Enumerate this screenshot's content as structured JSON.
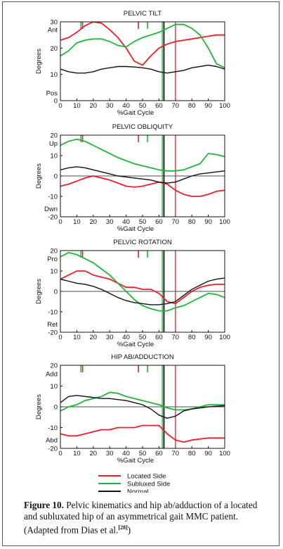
{
  "x_axis": {
    "label": "%Gait Cycle",
    "ticks": [
      "0",
      "10",
      "20",
      "30",
      "40",
      "50",
      "60",
      "70",
      "80",
      "90",
      "100"
    ]
  },
  "colors": {
    "located": "#e8202a",
    "subluxed": "#1fb43a",
    "normal": "#111111",
    "marker_dark": "#6b4a12"
  },
  "legend": [
    {
      "key": "located",
      "label": "Located Side"
    },
    {
      "key": "subluxed",
      "label": "Subluxed Side"
    },
    {
      "key": "normal",
      "label": "Normal"
    }
  ],
  "caption": {
    "label": "Figure 10.",
    "text": " Pelvic kinematics and hip ab/adduction of a located and subluxated hip of an asymmetrical gait MMC patient. (Adapted from Dias et al.",
    "ref": "[28]",
    "close": ")"
  },
  "chart_data": [
    {
      "type": "line",
      "title": "PELVIC TILT",
      "ylabel": "Degrees",
      "ylim": [
        0,
        30
      ],
      "xlim": [
        0,
        100
      ],
      "y_ticks": [
        "30",
        "20",
        "10",
        "0"
      ],
      "y_tick_values": [
        30,
        20,
        10,
        0
      ],
      "y_annotations": [
        {
          "text": "Ant",
          "y": 27
        },
        {
          "text": "Pos",
          "y": 3
        }
      ],
      "zero_line": false,
      "events": [
        {
          "x": 12.5,
          "series": "subluxed",
          "style": "tick"
        },
        {
          "x": 13.5,
          "series": "located",
          "style": "tick"
        },
        {
          "x": 47.5,
          "series": "located",
          "style": "tick"
        },
        {
          "x": 53,
          "series": "subluxed",
          "style": "tick"
        },
        {
          "x": 62,
          "series": "subluxed",
          "style": "full"
        },
        {
          "x": 63,
          "series": "normal",
          "style": "full"
        },
        {
          "x": 70,
          "series": "located",
          "style": "full"
        }
      ],
      "series": [
        {
          "name": "Located Side",
          "key": "located",
          "x": [
            0,
            5,
            10,
            15,
            20,
            25,
            30,
            35,
            40,
            45,
            50,
            55,
            60,
            65,
            70,
            75,
            80,
            85,
            90,
            95,
            100
          ],
          "y": [
            23,
            24,
            26,
            28.5,
            30,
            29.5,
            27,
            24,
            20,
            15,
            13.5,
            17,
            20,
            21.5,
            22.5,
            23,
            23.5,
            24,
            24.5,
            25,
            25
          ]
        },
        {
          "name": "Subluxed Side",
          "key": "subluxed",
          "x": [
            0,
            5,
            10,
            15,
            20,
            25,
            30,
            35,
            40,
            45,
            50,
            55,
            60,
            65,
            70,
            75,
            80,
            85,
            90,
            95,
            100
          ],
          "y": [
            17,
            19,
            22,
            23,
            23.5,
            23.5,
            22.5,
            21,
            20.5,
            22.5,
            24,
            25,
            26,
            27.5,
            29,
            29,
            27.5,
            25,
            20,
            14,
            12.5
          ]
        },
        {
          "name": "Normal",
          "key": "normal",
          "x": [
            0,
            5,
            10,
            15,
            20,
            25,
            30,
            35,
            40,
            45,
            50,
            55,
            60,
            65,
            70,
            75,
            80,
            85,
            90,
            95,
            100
          ],
          "y": [
            12,
            11,
            10.5,
            10.5,
            11,
            12,
            12.5,
            13,
            13,
            12.8,
            12.5,
            12,
            11,
            10.5,
            11,
            11.5,
            12.5,
            13,
            13.5,
            13,
            12
          ]
        }
      ]
    },
    {
      "type": "line",
      "title": "PELVIC OBLIQUITY",
      "ylabel": "Degrees",
      "ylim": [
        -20,
        20
      ],
      "xlim": [
        0,
        100
      ],
      "y_ticks": [
        "20",
        "10",
        "0",
        "-10",
        "-20"
      ],
      "y_tick_values": [
        20,
        10,
        0,
        -10,
        -20
      ],
      "y_annotations": [
        {
          "text": "Up",
          "y": 16
        },
        {
          "text": "Dwn",
          "y": -16
        }
      ],
      "zero_line": true,
      "events": [
        {
          "x": 12.5,
          "series": "subluxed",
          "style": "tick"
        },
        {
          "x": 13.5,
          "series": "located",
          "style": "tick"
        },
        {
          "x": 47.5,
          "series": "located",
          "style": "tick"
        },
        {
          "x": 53,
          "series": "subluxed",
          "style": "tick"
        },
        {
          "x": 62,
          "series": "subluxed",
          "style": "full"
        },
        {
          "x": 63,
          "series": "normal",
          "style": "full"
        },
        {
          "x": 70,
          "series": "located",
          "style": "full"
        }
      ],
      "series": [
        {
          "name": "Located Side",
          "key": "located",
          "x": [
            0,
            5,
            10,
            15,
            20,
            25,
            30,
            35,
            40,
            45,
            50,
            55,
            60,
            65,
            70,
            75,
            80,
            85,
            90,
            95,
            100
          ],
          "y": [
            -5,
            -4,
            -2.5,
            -1,
            0,
            -1,
            -2,
            -3.5,
            -5,
            -5.5,
            -5,
            -4,
            -3,
            -4,
            -7,
            -9,
            -10,
            -10,
            -9,
            -7.5,
            -7
          ]
        },
        {
          "name": "Subluxed Side",
          "key": "subluxed",
          "x": [
            0,
            5,
            10,
            15,
            20,
            25,
            30,
            35,
            40,
            45,
            50,
            55,
            60,
            65,
            70,
            75,
            80,
            85,
            90,
            95,
            100
          ],
          "y": [
            15,
            17,
            18,
            17,
            15,
            13,
            11,
            9,
            7.5,
            6,
            5,
            4,
            3,
            2.5,
            2.5,
            3,
            4.5,
            6,
            11,
            10.5,
            9.5
          ]
        },
        {
          "name": "Normal",
          "key": "normal",
          "x": [
            0,
            5,
            10,
            15,
            20,
            25,
            30,
            35,
            40,
            45,
            50,
            55,
            60,
            65,
            70,
            75,
            80,
            85,
            90,
            95,
            100
          ],
          "y": [
            3,
            4,
            4.5,
            4,
            3,
            2,
            1,
            0,
            -0.5,
            -1,
            -1.5,
            -2,
            -3,
            -3.5,
            -3,
            -1.5,
            0,
            1,
            1.5,
            2,
            2.5
          ]
        }
      ]
    },
    {
      "type": "line",
      "title": "PELVIC ROTATION",
      "ylabel": "Degrees",
      "ylim": [
        -20,
        20
      ],
      "xlim": [
        0,
        100
      ],
      "y_ticks": [
        "20",
        "10",
        "0",
        "-10",
        "-20"
      ],
      "y_tick_values": [
        20,
        10,
        0,
        -10,
        -20
      ],
      "y_annotations": [
        {
          "text": "Pro",
          "y": 16
        },
        {
          "text": "Ret",
          "y": -16
        }
      ],
      "zero_line": true,
      "events": [
        {
          "x": 12.5,
          "series": "subluxed",
          "style": "tick"
        },
        {
          "x": 13.5,
          "series": "located",
          "style": "tick"
        },
        {
          "x": 47.5,
          "series": "located",
          "style": "tick"
        },
        {
          "x": 53,
          "series": "subluxed",
          "style": "tick"
        },
        {
          "x": 62,
          "series": "subluxed",
          "style": "full"
        },
        {
          "x": 63,
          "series": "normal",
          "style": "full"
        },
        {
          "x": 70,
          "series": "located",
          "style": "full"
        }
      ],
      "series": [
        {
          "name": "Located Side",
          "key": "located",
          "x": [
            0,
            5,
            10,
            15,
            20,
            25,
            30,
            35,
            40,
            45,
            50,
            55,
            60,
            65,
            70,
            75,
            80,
            85,
            90,
            95,
            100
          ],
          "y": [
            6,
            8,
            10,
            10,
            8,
            7,
            6,
            4,
            2,
            2,
            1,
            1,
            -1,
            -5,
            -6,
            -3,
            0,
            2,
            3,
            3.5,
            3.5
          ]
        },
        {
          "name": "Subluxed Side",
          "key": "subluxed",
          "x": [
            0,
            5,
            10,
            15,
            20,
            25,
            30,
            35,
            40,
            45,
            50,
            55,
            60,
            65,
            70,
            75,
            80,
            85,
            90,
            95,
            100
          ],
          "y": [
            17,
            19,
            18,
            16,
            14,
            11,
            8,
            4,
            0,
            -4,
            -7,
            -8.5,
            -9.5,
            -9.5,
            -8,
            -7,
            -5,
            -3,
            -1,
            -1.5,
            -3
          ]
        },
        {
          "name": "Normal",
          "key": "normal",
          "x": [
            0,
            5,
            10,
            15,
            20,
            25,
            30,
            35,
            40,
            45,
            50,
            55,
            60,
            65,
            70,
            75,
            80,
            85,
            90,
            95,
            100
          ],
          "y": [
            6,
            5,
            4,
            3.5,
            2.5,
            1,
            -1,
            -3,
            -4.5,
            -5.5,
            -6,
            -6.5,
            -6.5,
            -6,
            -5,
            -2,
            1,
            3,
            5,
            6,
            6.5
          ]
        }
      ]
    },
    {
      "type": "line",
      "title": "HIP AB/ADDUCTION",
      "ylabel": "Degrees",
      "ylim": [
        -20,
        20
      ],
      "xlim": [
        0,
        100
      ],
      "y_ticks": [
        "20",
        "10",
        "0",
        "-10",
        "-20"
      ],
      "y_tick_values": [
        20,
        10,
        0,
        -10,
        -20
      ],
      "y_annotations": [
        {
          "text": "Add",
          "y": 16
        },
        {
          "text": "Abd",
          "y": -16
        }
      ],
      "zero_line": true,
      "events": [
        {
          "x": 12.5,
          "series": "subluxed",
          "style": "tick"
        },
        {
          "x": 13.5,
          "series": "located",
          "style": "tick"
        },
        {
          "x": 47.5,
          "series": "located",
          "style": "tick"
        },
        {
          "x": 53,
          "series": "subluxed",
          "style": "tick"
        },
        {
          "x": 62,
          "series": "subluxed",
          "style": "full"
        },
        {
          "x": 63,
          "series": "normal",
          "style": "full"
        },
        {
          "x": 70,
          "series": "located",
          "style": "full"
        }
      ],
      "series": [
        {
          "name": "Located Side",
          "key": "located",
          "x": [
            0,
            5,
            10,
            15,
            20,
            25,
            30,
            35,
            40,
            45,
            50,
            55,
            60,
            65,
            70,
            75,
            80,
            85,
            90,
            95,
            100
          ],
          "y": [
            -13,
            -14,
            -14,
            -13,
            -12,
            -11,
            -11,
            -10,
            -10,
            -10,
            -9,
            -9,
            -9,
            -13,
            -16,
            -17,
            -16,
            -15.5,
            -15,
            -15,
            -15
          ]
        },
        {
          "name": "Subluxed Side",
          "key": "subluxed",
          "x": [
            0,
            5,
            10,
            15,
            20,
            25,
            30,
            35,
            40,
            45,
            50,
            55,
            60,
            65,
            70,
            75,
            80,
            85,
            90,
            95,
            100
          ],
          "y": [
            -2,
            0,
            1,
            3,
            4,
            5,
            7,
            6.5,
            5,
            4,
            3,
            2,
            1,
            -0.5,
            -1.5,
            -1.5,
            -1,
            0,
            1,
            1,
            1
          ]
        },
        {
          "name": "Normal",
          "key": "normal",
          "x": [
            0,
            5,
            10,
            15,
            20,
            25,
            30,
            35,
            40,
            45,
            50,
            55,
            60,
            65,
            70,
            75,
            80,
            85,
            90,
            95,
            100
          ],
          "y": [
            2,
            5,
            5.5,
            5,
            4.5,
            4,
            4,
            3.5,
            3,
            2,
            1,
            -1,
            -4,
            -5.5,
            -4.5,
            -2,
            -1,
            -0.5,
            0,
            0.3,
            0.5
          ]
        }
      ]
    }
  ]
}
